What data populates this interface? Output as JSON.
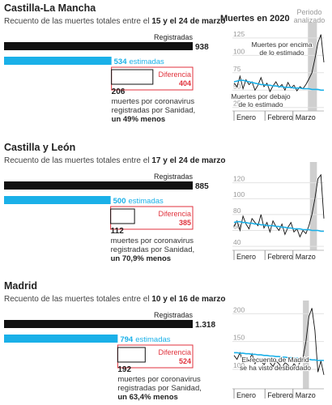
{
  "header": {
    "chart_title": "Muertes en 2020",
    "period_label": [
      "Periodo",
      "analizado"
    ]
  },
  "chart_data": [
    {
      "type": "bar",
      "title": "Castilla-La Mancha",
      "subtitle": "Recuento de las muertes totales entre el ",
      "subtitle_dates": "15 y el 24 de marzo",
      "registered_text": "Registradas",
      "registered": 938,
      "estimated": 534,
      "estimated_text": "estimadas",
      "difference_text": "Diferencia",
      "difference": 404,
      "covid": 206,
      "covid_text": [
        "muertes por coronavirus",
        "registradas por Sanidad,"
      ],
      "covid_note": "un 49% menos",
      "colors": {
        "registered": "#111111",
        "estimated": "#1ab0e8",
        "difference": "#e0323c"
      },
      "trend": {
        "type": "line",
        "ylim": [
          20,
          140
        ],
        "yticks": [
          25,
          50,
          75,
          100,
          125
        ],
        "xlim": [
          1,
          91
        ],
        "xticks": [
          {
            "value": 1,
            "label": "Enero"
          },
          {
            "value": 32,
            "label": "Febrero"
          },
          {
            "value": 60,
            "label": "Marzo"
          }
        ],
        "highlight": [
          75,
          84
        ],
        "x": [
          1,
          4,
          7,
          10,
          13,
          16,
          19,
          22,
          25,
          28,
          31,
          34,
          37,
          40,
          43,
          46,
          49,
          52,
          55,
          58,
          61,
          64,
          67,
          70,
          73,
          76,
          79,
          82,
          85,
          88,
          91
        ],
        "series": [
          {
            "color": "#111111",
            "values": [
              60,
              55,
              70,
              52,
              65,
              58,
              62,
              50,
              57,
              68,
              55,
              60,
              48,
              56,
              62,
              54,
              58,
              50,
              61,
              53,
              57,
              49,
              55,
              52,
              58,
              66,
              75,
              95,
              118,
              130,
              90
            ]
          },
          {
            "color": "#1ab0e8",
            "values": [
              62,
              63,
              64,
              64,
              63,
              62,
              61,
              60,
              59,
              58,
              58,
              57,
              57,
              56,
              56,
              55,
              55,
              54,
              54,
              54,
              53,
              53,
              53,
              52,
              52,
              52,
              51,
              51,
              51,
              50,
              50
            ]
          }
        ],
        "annotations": [
          {
            "lines": [
              "Muertes por encima",
              "de lo estimado"
            ]
          },
          {
            "lines": [
              "Muertes por debajo",
              "de lo estimado"
            ]
          }
        ]
      }
    },
    {
      "type": "bar",
      "title": "Castilla y León",
      "subtitle": "Recuento de las muertes totales entre el ",
      "subtitle_dates": "17 y el 24 de marzo",
      "registered_text": "Registradas",
      "registered": 885,
      "estimated": 500,
      "estimated_text": "estimadas",
      "difference_text": "Diferencia",
      "difference": 385,
      "covid": 112,
      "covid_text": [
        "muertes por coronavirus",
        "registradas por Sanidad,"
      ],
      "covid_note": "un 70,9% menos",
      "colors": {
        "registered": "#111111",
        "estimated": "#1ab0e8",
        "difference": "#e0323c"
      },
      "trend": {
        "type": "line",
        "ylim": [
          35,
          140
        ],
        "yticks": [
          40,
          60,
          80,
          100,
          120
        ],
        "xlim": [
          1,
          91
        ],
        "xticks": [
          {
            "value": 1,
            "label": "Enero"
          },
          {
            "value": 32,
            "label": "Febrero"
          },
          {
            "value": 60,
            "label": "Marzo"
          }
        ],
        "highlight": [
          77,
          84
        ],
        "x": [
          1,
          4,
          7,
          10,
          13,
          16,
          19,
          22,
          25,
          28,
          31,
          34,
          37,
          40,
          43,
          46,
          49,
          52,
          55,
          58,
          61,
          64,
          67,
          70,
          73,
          76,
          79,
          82,
          85,
          88,
          91
        ],
        "series": [
          {
            "color": "#111111",
            "values": [
              65,
              72,
              60,
              78,
              68,
              62,
              75,
              70,
              66,
              80,
              63,
              70,
              58,
              72,
              65,
              60,
              68,
              55,
              64,
              70,
              58,
              62,
              52,
              60,
              56,
              66,
              80,
              100,
              125,
              130,
              75
            ]
          },
          {
            "color": "#1ab0e8",
            "values": [
              70,
              71,
              71,
              70,
              70,
              69,
              69,
              68,
              68,
              67,
              67,
              66,
              66,
              66,
              65,
              65,
              64,
              64,
              63,
              63,
              62,
              62,
              62,
              61,
              61,
              61,
              60,
              60,
              60,
              59,
              59
            ]
          }
        ],
        "annotations": []
      }
    },
    {
      "type": "bar",
      "title": "Madrid",
      "subtitle": "Recuento de las muertes totales entre el ",
      "subtitle_dates": "10 y el 16 de marzo",
      "registered_text": "Registradas",
      "registered": 1318,
      "registered_value_label": "1.318",
      "estimated": 794,
      "estimated_text": "estimadas",
      "difference_text": "Diferencia",
      "difference": 524,
      "covid": 192,
      "covid_text": [
        "muertes por coronavirus",
        "registradas por Sanidad,"
      ],
      "covid_note": "un 63,4% menos",
      "colors": {
        "registered": "#111111",
        "estimated": "#1ab0e8",
        "difference": "#e0323c"
      },
      "trend": {
        "type": "line",
        "ylim": [
          65,
          215
        ],
        "yticks": [
          100,
          150,
          200
        ],
        "xlim": [
          1,
          91
        ],
        "xticks": [
          {
            "value": 1,
            "label": "Enero"
          },
          {
            "value": 32,
            "label": "Febrero"
          },
          {
            "value": 60,
            "label": "Marzo"
          }
        ],
        "highlight": [
          70,
          76
        ],
        "x": [
          1,
          4,
          7,
          10,
          13,
          16,
          19,
          22,
          25,
          28,
          31,
          34,
          37,
          40,
          43,
          46,
          49,
          52,
          55,
          58,
          61,
          64,
          67,
          70,
          73,
          76,
          79,
          82,
          85,
          88,
          91
        ],
        "series": [
          {
            "color": "#111111",
            "values": [
              125,
              118,
              130,
              112,
              122,
              115,
              128,
              110,
              120,
              116,
              108,
              118,
              112,
              105,
              115,
              110,
              102,
              112,
              108,
              100,
              110,
              104,
              112,
              120,
              150,
              195,
              210,
              170,
              95,
              115,
              90
            ]
          },
          {
            "color": "#1ab0e8",
            "values": [
              130,
              130,
              129,
              129,
              128,
              128,
              127,
              127,
              126,
              126,
              125,
              125,
              124,
              124,
              123,
              123,
              122,
              122,
              121,
              121,
              120,
              120,
              119,
              119,
              118,
              118,
              117,
              117,
              116,
              116,
              116
            ]
          }
        ],
        "annotations": [
          {
            "lines": [
              "El recuento de Madrid",
              "se ha visto desbordado"
            ]
          }
        ]
      }
    }
  ]
}
